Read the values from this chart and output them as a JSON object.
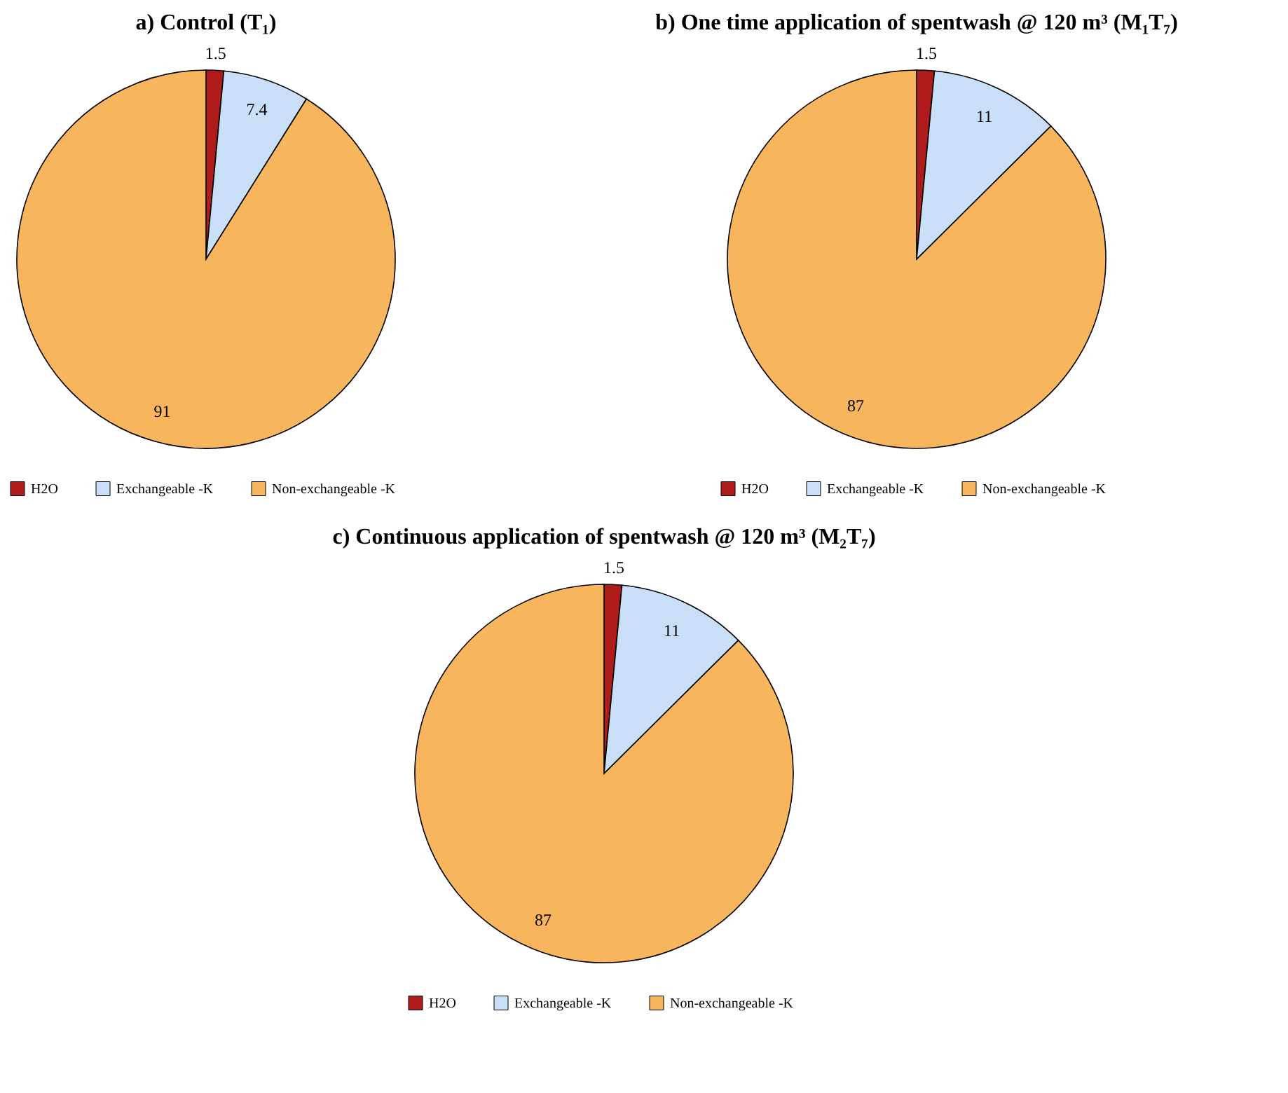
{
  "chart_data": [
    {
      "type": "pie",
      "title": "a) Control (T₁)",
      "categories": [
        "H2O",
        "Exchangeable -K",
        "Non-exchangeable -K"
      ],
      "values": [
        1.5,
        7.4,
        91
      ],
      "colors": [
        "#b01c1c",
        "#c9def7",
        "#f7b65e"
      ],
      "data_labels": true,
      "legend": "bottom"
    },
    {
      "type": "pie",
      "title": "b) One time application of spentwash @ 120 m³ (M₁T₇)",
      "categories": [
        "H2O",
        "Exchangeable -K",
        "Non-exchangeable -K"
      ],
      "values": [
        1.5,
        11,
        87
      ],
      "colors": [
        "#b01c1c",
        "#c9def7",
        "#f7b65e"
      ],
      "data_labels": true,
      "legend": "bottom"
    },
    {
      "type": "pie",
      "title": "c) Continuous application of spentwash @ 120 m³ (M₂T₇)",
      "categories": [
        "H2O",
        "Exchangeable -K",
        "Non-exchangeable -K"
      ],
      "values": [
        1.5,
        11,
        87
      ],
      "colors": [
        "#b01c1c",
        "#c9def7",
        "#f7b65e"
      ],
      "data_labels": true,
      "legend": "bottom"
    }
  ]
}
